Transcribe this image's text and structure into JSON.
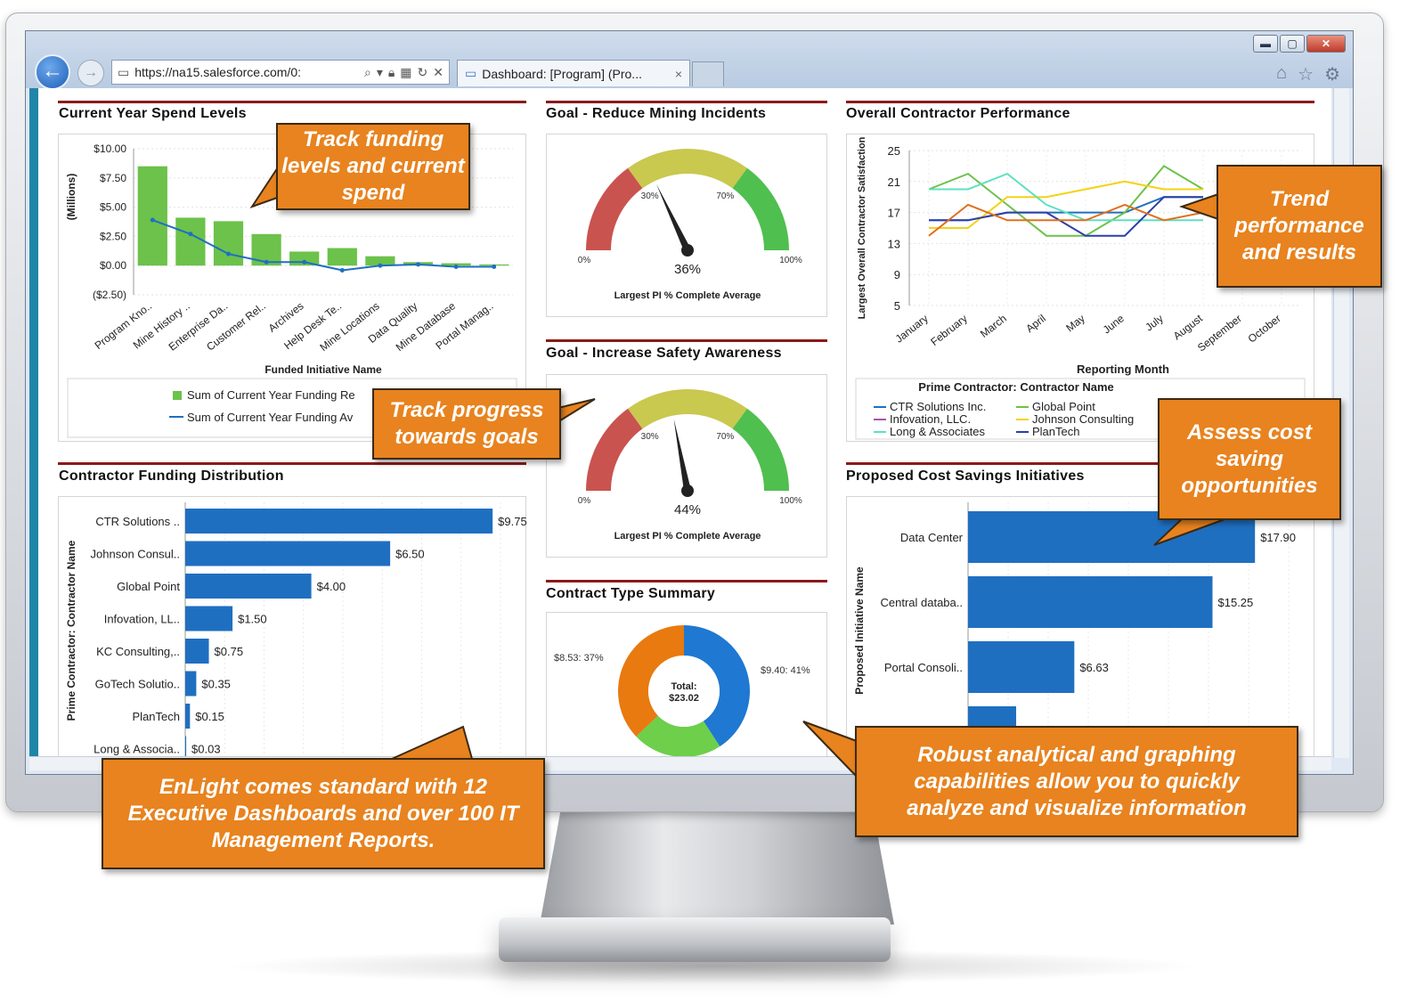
{
  "browser": {
    "url": "https://na15.salesforce.com/0:",
    "tab_title": "Dashboard: [Program] (Pro...",
    "tab_close": "×",
    "minimize": "▬",
    "maximize": "▢",
    "close": "✕"
  },
  "panels": {
    "spend": {
      "title": "Current Year Spend Levels",
      "legend": [
        "Sum of Current Year Funding Re",
        "Sum of Current Year Funding Av"
      ]
    },
    "mining": {
      "title": "Goal - Reduce Mining Incidents"
    },
    "safety": {
      "title": "Goal - Increase Safety Awareness"
    },
    "contract_type": {
      "title": "Contract Type Summary"
    },
    "performance": {
      "title": "Overall Contractor Performance"
    },
    "distribution": {
      "title": "Contractor Funding Distribution"
    },
    "savings": {
      "title": "Proposed Cost Savings Initiatives"
    }
  },
  "chart_data": [
    {
      "type": "bar",
      "chart": "spend",
      "title": "Current Year Spend Levels",
      "xlabel": "Funded Initiative Name",
      "ylabel": "(Millions)",
      "categories": [
        "Program Kno..",
        "Mine History ..",
        "Enterprise Da..",
        "Customer Rel..",
        "Archives",
        "Help Desk Te..",
        "Mine Locations",
        "Data Quality",
        "Mine Database",
        "Portal Manag.."
      ],
      "yticks": [
        "$10.00",
        "$7.50",
        "$5.00",
        "$2.50",
        "$0.00",
        "($2.50)"
      ],
      "ylim": [
        -2.5,
        10
      ],
      "series": [
        {
          "name": "Sum of Current Year Funding Re",
          "kind": "bar",
          "color": "#6cc24a",
          "values": [
            8.5,
            4.1,
            3.8,
            2.7,
            1.2,
            1.5,
            0.8,
            0.3,
            0.2,
            0.1
          ]
        },
        {
          "name": "Sum of Current Year Funding Av",
          "kind": "line",
          "color": "#1f6fc1",
          "values": [
            3.9,
            2.7,
            1.0,
            0.3,
            0.3,
            -0.4,
            0.0,
            0.1,
            -0.1,
            -0.1
          ]
        }
      ]
    },
    {
      "type": "gauge",
      "chart": "mining",
      "value_label": "36%",
      "value": 36,
      "caption": "Largest PI % Complete Average",
      "ticks": [
        "0%",
        "30%",
        "70%",
        "100%"
      ],
      "bands": [
        {
          "to": 30,
          "color": "#c9534f"
        },
        {
          "to": 70,
          "color": "#c9c84f"
        },
        {
          "to": 100,
          "color": "#4fbf4f"
        }
      ]
    },
    {
      "type": "gauge",
      "chart": "safety",
      "value_label": "44%",
      "value": 44,
      "caption": "Largest PI % Complete Average",
      "ticks": [
        "0%",
        "30%",
        "70%",
        "100%"
      ],
      "bands": [
        {
          "to": 30,
          "color": "#c9534f"
        },
        {
          "to": 70,
          "color": "#c9c84f"
        },
        {
          "to": 100,
          "color": "#4fbf4f"
        }
      ]
    },
    {
      "type": "pie",
      "chart": "contract_type",
      "center_label": "Total:",
      "center_value": "$23.02",
      "slices": [
        {
          "label": "$9.40: 41%",
          "value": 9.4,
          "color": "#1f78d1"
        },
        {
          "label": "",
          "value": 5.09,
          "color": "#6dcf4a"
        },
        {
          "label": "$8.53: 37%",
          "value": 8.53,
          "color": "#e87a10"
        }
      ]
    },
    {
      "type": "line",
      "chart": "performance",
      "xlabel": "Reporting Month",
      "ylabel": "Largest Overall Contractor Satisfaction",
      "yticks": [
        "25",
        "21",
        "17",
        "13",
        "9",
        "5"
      ],
      "ylim": [
        5,
        25
      ],
      "x": [
        "January",
        "February",
        "March",
        "April",
        "May",
        "June",
        "July",
        "August",
        "September",
        "October"
      ],
      "legend_title": "Prime Contractor: Contractor Name",
      "series": [
        {
          "name": "CTR Solutions Inc.",
          "color": "#1f6fc1",
          "values": [
            16,
            16,
            17,
            17,
            17,
            17,
            19,
            19,
            null,
            null
          ]
        },
        {
          "name": "Global Point",
          "color": "#6cc24a",
          "values": [
            20,
            22,
            18,
            14,
            14,
            17,
            23,
            20,
            null,
            null
          ]
        },
        {
          "name": "Infovation, LLC.",
          "color": "#9b59b6",
          "values": [
            null,
            null,
            null,
            null,
            null,
            null,
            null,
            null,
            null,
            null
          ]
        },
        {
          "name": "Johnson Consulting",
          "color": "#f2d316",
          "values": [
            15,
            15,
            19,
            19,
            20,
            21,
            20,
            20,
            null,
            null
          ]
        },
        {
          "name": "Long & Associates",
          "color": "#5ee0c0",
          "values": [
            20,
            20,
            22,
            18,
            16,
            16,
            16,
            16,
            null,
            null
          ]
        },
        {
          "name": "PlanTech",
          "color": "#2b3fa8",
          "values": [
            16,
            16,
            17,
            17,
            14,
            14,
            19,
            19,
            null,
            null
          ]
        },
        {
          "name": "",
          "color": "#e0701d",
          "values": [
            14,
            18,
            16,
            16,
            16,
            18,
            16,
            17,
            null,
            null
          ]
        }
      ]
    },
    {
      "type": "bar",
      "chart": "distribution",
      "orientation": "horizontal",
      "ylabel": "Prime Contractor: Contractor Name",
      "categories": [
        "CTR Solutions ..",
        "Johnson Consul..",
        "Global Point",
        "Infovation, LL..",
        "KC Consulting,..",
        "GoTech Solutio..",
        "PlanTech",
        "Long & Associa.."
      ],
      "values": [
        9.75,
        6.5,
        4.0,
        1.5,
        0.75,
        0.35,
        0.15,
        0.03
      ],
      "value_labels": [
        "$9.75",
        "$6.50",
        "$4.00",
        "$1.50",
        "$0.75",
        "$0.35",
        "$0.15",
        "$0.03"
      ],
      "color": "#1f6fc1"
    },
    {
      "type": "bar",
      "chart": "savings",
      "orientation": "horizontal",
      "ylabel": "Proposed Initiative Name",
      "categories": [
        "Data Center",
        "Central databa..",
        "Portal Consoli..",
        ""
      ],
      "values": [
        17.9,
        15.25,
        6.63,
        3.0
      ],
      "value_labels": [
        "$17.90",
        "$15.25",
        "$6.63",
        ""
      ],
      "color": "#1f6fc1"
    }
  ],
  "callouts": {
    "funding": "Track funding levels and current spend",
    "progress": "Track progress towards goals",
    "trend": "Trend performance and results",
    "cost": "Assess cost saving opportunities",
    "enlight": "EnLight comes standard with 12 Executive Dashboards and over 100 IT Management Reports.",
    "robust": "Robust analytical and graphing capabilities allow you to quickly analyze and visualize information"
  }
}
